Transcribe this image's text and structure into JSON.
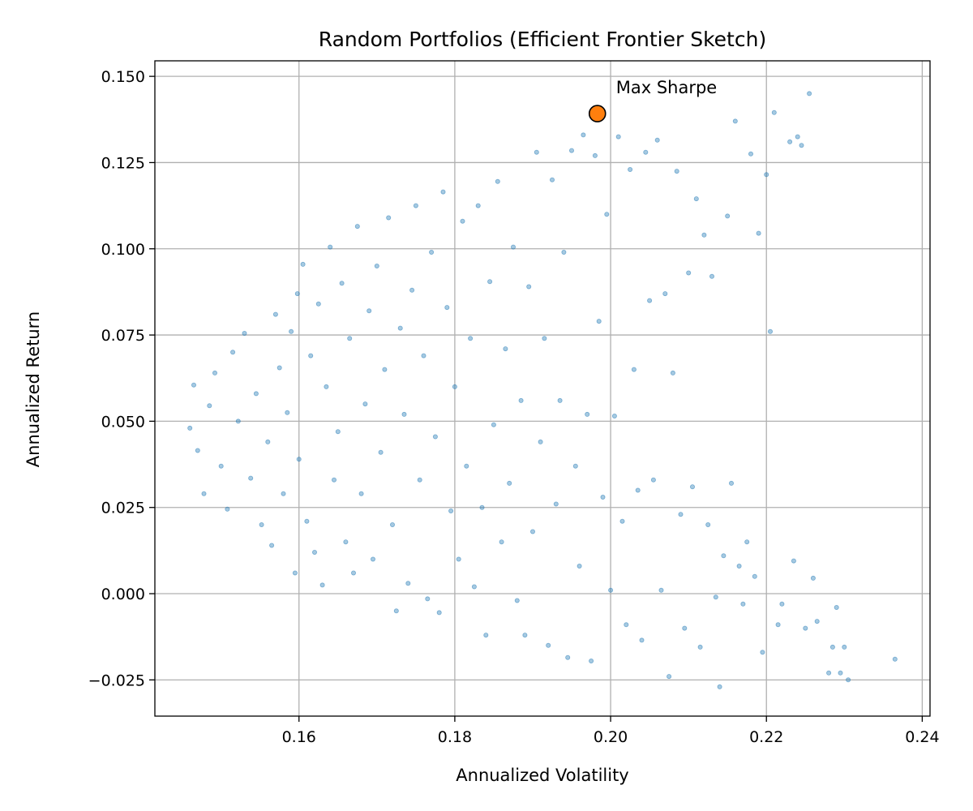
{
  "chart_data": {
    "type": "scatter",
    "title": "Random Portfolios (Efficient Frontier Sketch)",
    "xlabel": "Annualized Volatility",
    "ylabel": "Annualized Return",
    "xlim": [
      0.1415,
      0.241
    ],
    "ylim": [
      -0.0355,
      0.1545
    ],
    "xticks": [
      0.16,
      0.18,
      0.2,
      0.22,
      0.24
    ],
    "xtick_labels": [
      "0.16",
      "0.18",
      "0.20",
      "0.22",
      "0.24"
    ],
    "yticks": [
      -0.025,
      0.0,
      0.025,
      0.05,
      0.075,
      0.1,
      0.125,
      0.15
    ],
    "ytick_labels": [
      "−0.025",
      "0.000",
      "0.025",
      "0.050",
      "0.075",
      "0.100",
      "0.125",
      "0.150"
    ],
    "grid": true,
    "series": [
      {
        "color": "#1f77b4",
        "alpha": 0.4,
        "points": [
          [
            0.146,
            0.048
          ],
          [
            0.1465,
            0.0605
          ],
          [
            0.147,
            0.0415
          ],
          [
            0.1478,
            0.029
          ],
          [
            0.1485,
            0.0545
          ],
          [
            0.1492,
            0.064
          ],
          [
            0.15,
            0.037
          ],
          [
            0.1508,
            0.0245
          ],
          [
            0.1515,
            0.07
          ],
          [
            0.1522,
            0.05
          ],
          [
            0.153,
            0.0755
          ],
          [
            0.1538,
            0.0335
          ],
          [
            0.1545,
            0.058
          ],
          [
            0.1552,
            0.02
          ],
          [
            0.156,
            0.044
          ],
          [
            0.1565,
            0.014
          ],
          [
            0.157,
            0.081
          ],
          [
            0.1575,
            0.0655
          ],
          [
            0.158,
            0.029
          ],
          [
            0.1585,
            0.0525
          ],
          [
            0.159,
            0.076
          ],
          [
            0.1595,
            0.006
          ],
          [
            0.1598,
            0.087
          ],
          [
            0.16,
            0.039
          ],
          [
            0.1605,
            0.0955
          ],
          [
            0.161,
            0.021
          ],
          [
            0.1615,
            0.069
          ],
          [
            0.162,
            0.012
          ],
          [
            0.1625,
            0.084
          ],
          [
            0.163,
            0.0025
          ],
          [
            0.1635,
            0.06
          ],
          [
            0.164,
            0.1005
          ],
          [
            0.1645,
            0.033
          ],
          [
            0.165,
            0.047
          ],
          [
            0.1655,
            0.09
          ],
          [
            0.166,
            0.015
          ],
          [
            0.1665,
            0.074
          ],
          [
            0.167,
            0.006
          ],
          [
            0.1675,
            0.1065
          ],
          [
            0.168,
            0.029
          ],
          [
            0.1685,
            0.055
          ],
          [
            0.169,
            0.082
          ],
          [
            0.1695,
            0.01
          ],
          [
            0.17,
            0.095
          ],
          [
            0.1705,
            0.041
          ],
          [
            0.171,
            0.065
          ],
          [
            0.1715,
            0.109
          ],
          [
            0.172,
            0.02
          ],
          [
            0.1725,
            -0.005
          ],
          [
            0.173,
            0.077
          ],
          [
            0.1735,
            0.052
          ],
          [
            0.174,
            0.003
          ],
          [
            0.1745,
            0.088
          ],
          [
            0.175,
            0.1125
          ],
          [
            0.1755,
            0.033
          ],
          [
            0.176,
            0.069
          ],
          [
            0.1765,
            -0.0015
          ],
          [
            0.177,
            0.099
          ],
          [
            0.1775,
            0.0455
          ],
          [
            0.178,
            -0.0055
          ],
          [
            0.1785,
            0.1165
          ],
          [
            0.179,
            0.083
          ],
          [
            0.1795,
            0.024
          ],
          [
            0.18,
            0.06
          ],
          [
            0.1805,
            0.01
          ],
          [
            0.181,
            0.108
          ],
          [
            0.1815,
            0.037
          ],
          [
            0.182,
            0.074
          ],
          [
            0.1825,
            0.002
          ],
          [
            0.183,
            0.1125
          ],
          [
            0.1835,
            0.025
          ],
          [
            0.184,
            -0.012
          ],
          [
            0.1845,
            0.0905
          ],
          [
            0.185,
            0.049
          ],
          [
            0.1855,
            0.1195
          ],
          [
            0.186,
            0.015
          ],
          [
            0.1865,
            0.071
          ],
          [
            0.187,
            0.032
          ],
          [
            0.1875,
            0.1005
          ],
          [
            0.188,
            -0.002
          ],
          [
            0.1885,
            0.056
          ],
          [
            0.189,
            -0.012
          ],
          [
            0.1895,
            0.089
          ],
          [
            0.19,
            0.018
          ],
          [
            0.1905,
            0.128
          ],
          [
            0.191,
            0.044
          ],
          [
            0.1915,
            0.074
          ],
          [
            0.192,
            -0.015
          ],
          [
            0.1925,
            0.12
          ],
          [
            0.193,
            0.026
          ],
          [
            0.1935,
            0.056
          ],
          [
            0.194,
            0.099
          ],
          [
            0.1945,
            -0.0185
          ],
          [
            0.195,
            0.1285
          ],
          [
            0.1955,
            0.037
          ],
          [
            0.196,
            0.008
          ],
          [
            0.1965,
            0.133
          ],
          [
            0.197,
            0.052
          ],
          [
            0.1975,
            -0.0195
          ],
          [
            0.198,
            0.127
          ],
          [
            0.1985,
            0.079
          ],
          [
            0.199,
            0.028
          ],
          [
            0.1995,
            0.11
          ],
          [
            0.2,
            0.001
          ],
          [
            0.2005,
            0.0515
          ],
          [
            0.201,
            0.1325
          ],
          [
            0.2015,
            0.021
          ],
          [
            0.202,
            -0.009
          ],
          [
            0.2025,
            0.123
          ],
          [
            0.203,
            0.065
          ],
          [
            0.2035,
            0.03
          ],
          [
            0.204,
            -0.0135
          ],
          [
            0.2045,
            0.128
          ],
          [
            0.205,
            0.085
          ],
          [
            0.2055,
            0.033
          ],
          [
            0.206,
            0.1315
          ],
          [
            0.2065,
            0.001
          ],
          [
            0.207,
            0.087
          ],
          [
            0.2075,
            -0.024
          ],
          [
            0.208,
            0.064
          ],
          [
            0.2085,
            0.1225
          ],
          [
            0.209,
            0.023
          ],
          [
            0.2095,
            -0.01
          ],
          [
            0.21,
            0.093
          ],
          [
            0.2105,
            0.031
          ],
          [
            0.211,
            0.1145
          ],
          [
            0.2115,
            -0.0155
          ],
          [
            0.212,
            0.104
          ],
          [
            0.2125,
            0.02
          ],
          [
            0.213,
            0.092
          ],
          [
            0.2135,
            -0.001
          ],
          [
            0.214,
            -0.027
          ],
          [
            0.2145,
            0.011
          ],
          [
            0.215,
            0.1095
          ],
          [
            0.2155,
            0.032
          ],
          [
            0.216,
            0.137
          ],
          [
            0.2165,
            0.008
          ],
          [
            0.217,
            -0.003
          ],
          [
            0.2175,
            0.015
          ],
          [
            0.218,
            0.1275
          ],
          [
            0.2185,
            0.005
          ],
          [
            0.219,
            0.1045
          ],
          [
            0.2195,
            -0.017
          ],
          [
            0.22,
            0.1215
          ],
          [
            0.2205,
            0.076
          ],
          [
            0.221,
            0.1395
          ],
          [
            0.2215,
            -0.009
          ],
          [
            0.222,
            -0.003
          ],
          [
            0.223,
            0.131
          ],
          [
            0.2235,
            0.0095
          ],
          [
            0.224,
            0.1325
          ],
          [
            0.2245,
            0.13
          ],
          [
            0.225,
            -0.01
          ],
          [
            0.2255,
            0.145
          ],
          [
            0.226,
            0.0045
          ],
          [
            0.2265,
            -0.008
          ],
          [
            0.228,
            -0.023
          ],
          [
            0.2285,
            -0.0155
          ],
          [
            0.229,
            -0.004
          ],
          [
            0.2295,
            -0.023
          ],
          [
            0.23,
            -0.0155
          ],
          [
            0.2305,
            -0.025
          ],
          [
            0.2365,
            -0.019
          ]
        ]
      }
    ],
    "highlight": {
      "label": "Max Sharpe",
      "x": 0.1983,
      "y": 0.1392,
      "color": "#ff7f0e"
    }
  }
}
